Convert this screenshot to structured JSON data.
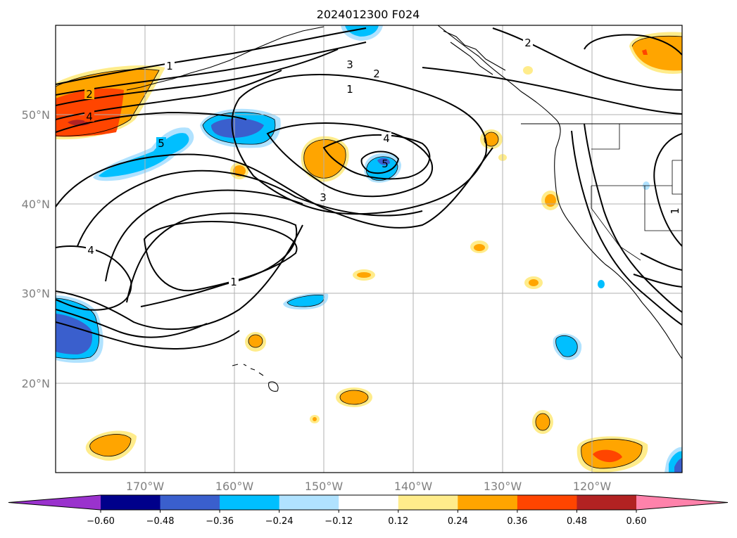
{
  "title": "2024012300 F024",
  "axes": {
    "lon_ticks": [
      "170°W",
      "160°W",
      "150°W",
      "140°W",
      "130°W",
      "120°W"
    ],
    "lat_ticks": [
      "50°N",
      "40°N",
      "30°N",
      "20°N"
    ]
  },
  "colorbar": {
    "labels": [
      "−0.60",
      "−0.48",
      "−0.36",
      "−0.24",
      "−0.12",
      "0.12",
      "0.24",
      "0.36",
      "0.48",
      "0.60"
    ],
    "colors": [
      "#9a32cd",
      "#00008b",
      "#3a5fcd",
      "#00bfff",
      "#b0e2ff",
      "#ffffff",
      "#ffec8b",
      "#ffa500",
      "#ff4500",
      "#b22222",
      "#ff82ab"
    ]
  },
  "contour_labels": [
    "1",
    "2",
    "4",
    "5",
    "3",
    "2",
    "1",
    "4",
    "5",
    "3",
    "4",
    "1",
    "2",
    "1"
  ]
}
